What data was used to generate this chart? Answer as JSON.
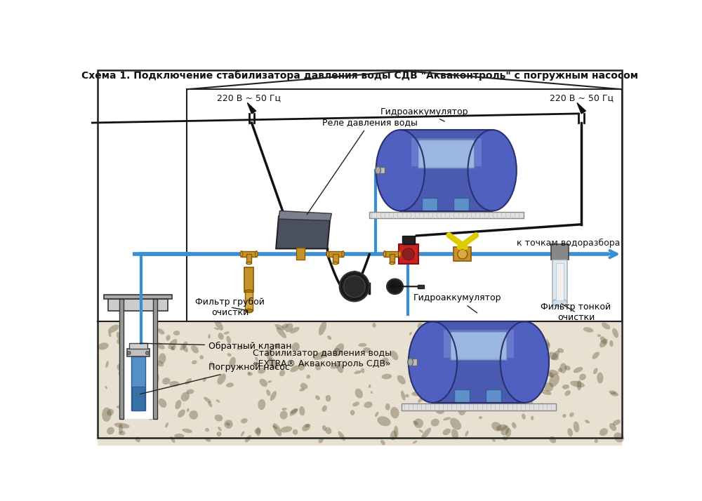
{
  "title": "Схема 1. Подключение стабилизатора давления воды СДВ \"Акваконтроль\" с погружным насосом",
  "bg_color": "#f5f5f0",
  "border_color": "#222222",
  "pipe_color": "#3a8fd4",
  "electric_color": "#111111",
  "soil_pattern_color": "#555555",
  "labels": {
    "voltage_left": "220 В ~ 50 Гц",
    "voltage_right": "220 В ~ 50 Гц",
    "relay": "Реле давления воды",
    "hydro_top": "Гидроаккумулятор",
    "hydro_bottom": "Гидроаккумулятор",
    "filter_coarse": "Фильтр грубой\nочистки",
    "filter_fine": "Фильтр тонкой\nочистки",
    "check_valve": "Обратный клапан",
    "pump": "Погружной насос",
    "stabilizer": "Стабилизатор давления воды\n«EXTRA® Акваконтроль СДВ»",
    "water_points": "к точкам водоразбора"
  }
}
